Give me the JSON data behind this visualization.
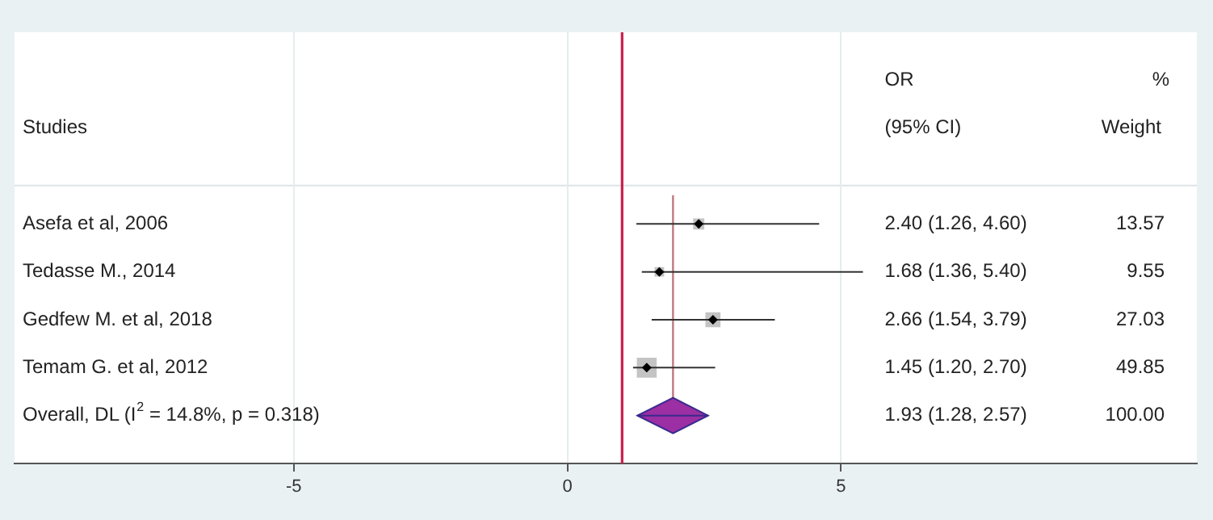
{
  "chart_data": {
    "type": "scatter",
    "orientation": "horizontal",
    "ylabel": "Studies",
    "categories": [
      "Asefa et al, 2006",
      "Tedasse M., 2014",
      "Gedfew M. et al, 2018",
      "Temam G. et al, 2012",
      "Overall, DL (I$^{2}$ = 14.8%, p = 0.318)"
    ],
    "series": [
      {
        "type": "scatter",
        "marker": "square",
        "color": "#c4c4c4",
        "values": [
          2.4,
          1.68,
          2.66,
          1.45,
          null
        ],
        "sizes": [
          0.272,
          0.192,
          0.542,
          1,
          null
        ],
        "errors": [
          [
            1.26,
            4.6
          ],
          [
            1.36,
            5.4
          ],
          [
            1.54,
            3.79
          ],
          [
            1.2,
            2.7
          ],
          null
        ]
      },
      {
        "type": "scatter",
        "marker": "diamond",
        "color": "#9b2fa3",
        "values": [
          null,
          null,
          null,
          null,
          1.93
        ],
        "errors": [
          null,
          null,
          null,
          null,
          [
            1.28,
            2.57
          ]
        ]
      }
    ],
    "annotations": [
      "OR",
      "(95% CI)",
      "%",
      "Weight",
      "2.40 (1.26, 4.60)",
      "1.68 (1.36, 5.40)",
      "2.66 (1.54, 3.79)",
      "1.45 (1.20, 2.70)",
      "1.93 (1.28, 2.57)",
      "13.57",
      "9.55",
      "27.03",
      "49.85",
      "100.00"
    ],
    "ref_lines": [
      {
        "axis": "x",
        "value": 1,
        "color": "#c8204a"
      },
      {
        "axis": "x",
        "value": 1.93,
        "color": "#c07880"
      }
    ],
    "xlim": [
      -10.1,
      11.5
    ],
    "xticks": [
      -5,
      0,
      5
    ],
    "grid": "x"
  }
}
